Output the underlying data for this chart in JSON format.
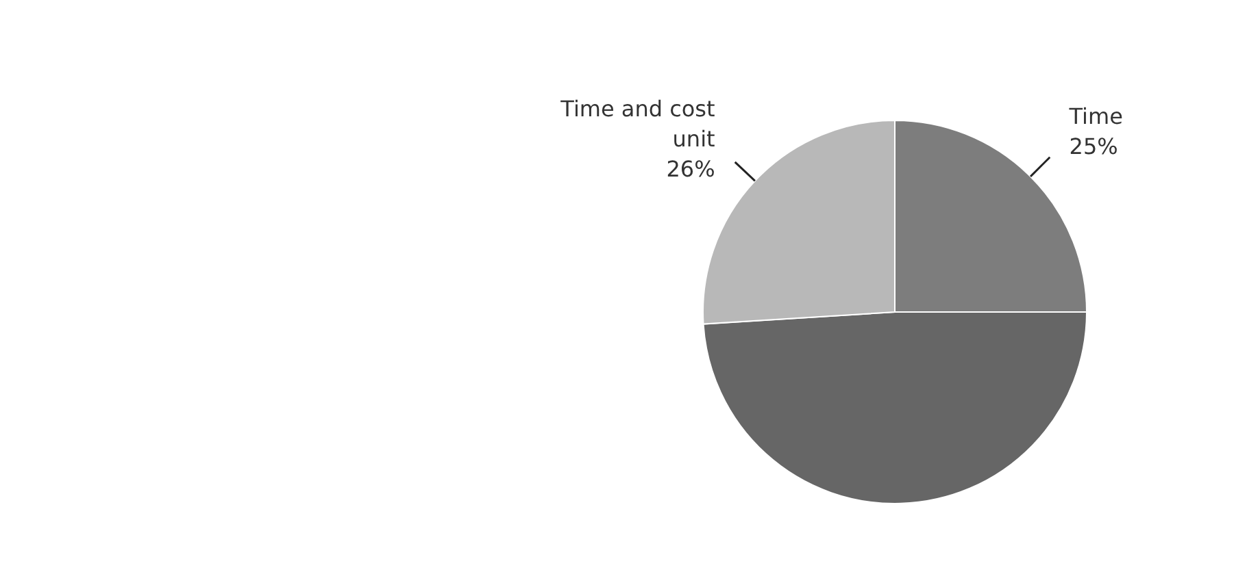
{
  "chart_data": {
    "type": "pie",
    "categories": [
      "Time",
      null,
      "Time and cost unit"
    ],
    "values": [
      25,
      49,
      26
    ],
    "colors": [
      "#7d7d7d",
      "#666666",
      "#b8b8b8"
    ],
    "value_labels": [
      "25%",
      null,
      "26%"
    ]
  }
}
